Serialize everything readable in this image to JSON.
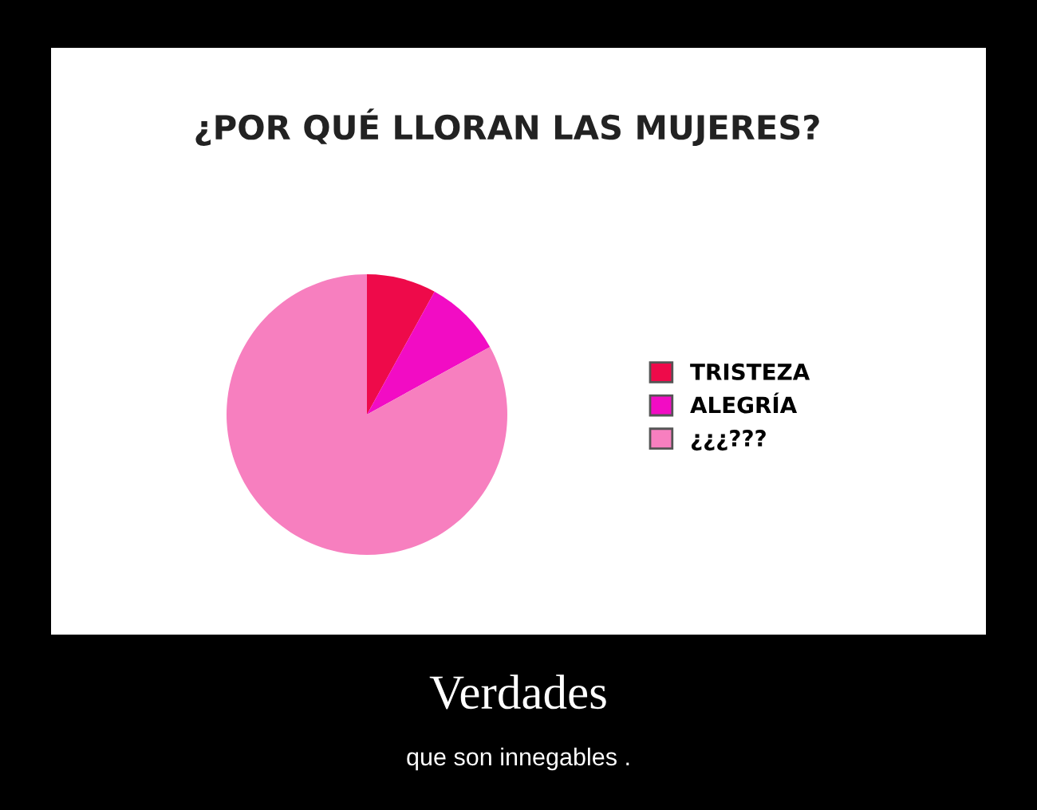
{
  "chart_data": {
    "type": "pie",
    "title": "¿POR QUÉ LLORAN LAS MUJERES?",
    "categories": [
      "TRISTEZA",
      "ALEGRÍA",
      "¿¿¿???"
    ],
    "values": [
      8,
      9,
      83
    ],
    "colors": [
      "#ee0a4a",
      "#f20cc4",
      "#f77fbf"
    ],
    "legend": "right",
    "annotations": [
      "Verdades",
      "que son innegables ."
    ]
  }
}
